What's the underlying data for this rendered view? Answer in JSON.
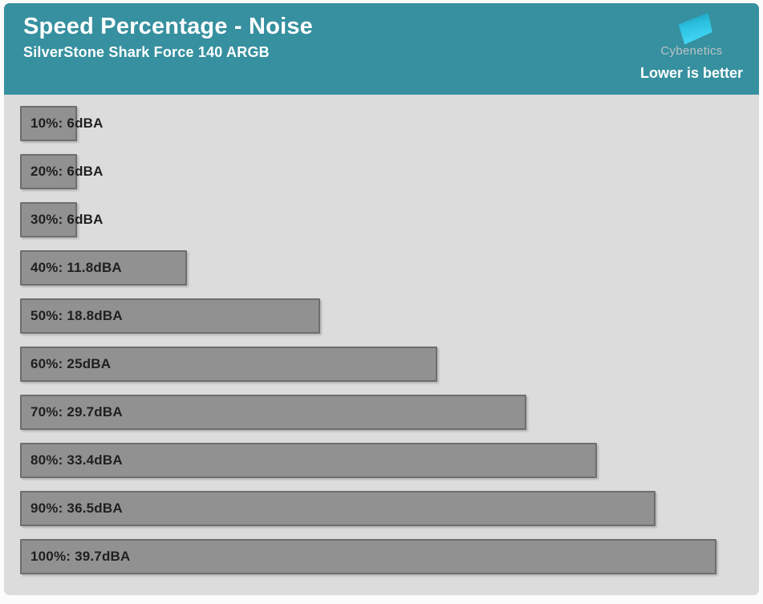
{
  "header": {
    "title": "Speed Percentage - Noise",
    "subtitle": "SilverStone Shark Force 140 ARGB",
    "brand": "Cybenetics",
    "note": "Lower is better"
  },
  "colors": {
    "header_bg": "#36909f",
    "chart_bg": "#dcdcdc",
    "bar_fill": "#919191",
    "bar_border": "#6e6e6e",
    "label_text": "#1f1f1f",
    "logo_gradient_top": "#1b92b2",
    "logo_gradient_bottom": "#45d7f7"
  },
  "chart_data": {
    "type": "bar",
    "orientation": "horizontal",
    "title": "Speed Percentage - Noise",
    "subtitle": "SilverStone Shark Force 140 ARGB",
    "note": "Lower is better",
    "categories": [
      "10%",
      "20%",
      "30%",
      "40%",
      "50%",
      "60%",
      "70%",
      "80%",
      "90%",
      "100%"
    ],
    "values": [
      6,
      6,
      6,
      11.8,
      18.8,
      25,
      29.7,
      33.4,
      36.5,
      39.7
    ],
    "unit": "dBA",
    "label_format": "{category}: {value}{unit}",
    "xlabel": "",
    "ylabel": "",
    "xlim": [
      3,
      39.7
    ],
    "grid": false,
    "legend": false
  }
}
